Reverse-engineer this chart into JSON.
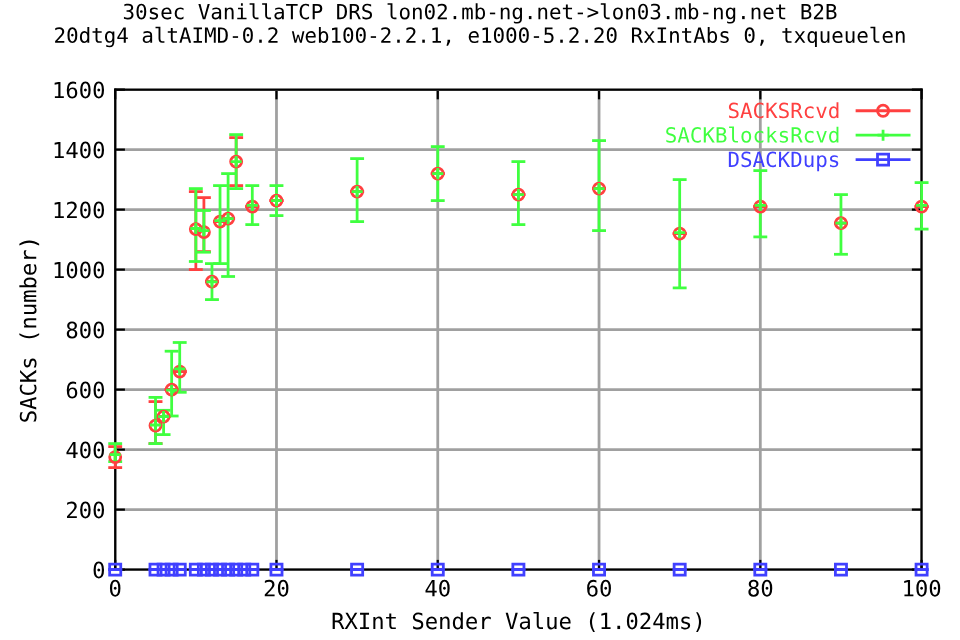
{
  "chart_data": {
    "type": "scatter",
    "title": "30sec VanillaTCP DRS lon02.mb-ng.net->lon03.mb-ng.net B2B\n20dtg4 altAIMD-0.2 web100-2.2.1, e1000-5.2.20 RxIntAbs 0, txqueuelen",
    "xlabel": "RXInt Sender Value (1.024ms)",
    "ylabel": "SACKs (number)",
    "x": [
      0,
      5,
      6,
      7,
      8,
      10,
      11,
      12,
      13,
      14,
      15,
      16,
      17,
      20,
      30,
      40,
      50,
      60,
      70,
      80,
      90,
      100
    ],
    "series": [
      {
        "name": "SACKSRcvd",
        "color": "#ff4040",
        "marker": "circle",
        "values": [
          375,
          480,
          510,
          600,
          660,
          1135,
          1125,
          960,
          1160,
          1170,
          1360,
          null,
          1210,
          1230,
          1260,
          1320,
          1250,
          1270,
          1120,
          1210,
          1155,
          1210
        ],
        "errors": [
          [
            340,
            410
          ],
          [
            420,
            560
          ],
          null,
          null,
          null,
          [
            1000,
            1260
          ],
          [
            1060,
            1240
          ],
          null,
          null,
          null,
          [
            1280,
            1440
          ],
          null,
          null,
          null,
          null,
          null,
          null,
          null,
          null,
          null,
          null,
          null
        ]
      },
      {
        "name": "SACKBlocksRcvd",
        "color": "#40ff40",
        "marker": "cross",
        "values": [
          383,
          482,
          510,
          598,
          669,
          1137,
          1130,
          959,
          1163,
          1170,
          1360,
          null,
          1214,
          1230,
          1260,
          1320,
          1250,
          1270,
          1123,
          1214,
          1155,
          1214
        ],
        "errors": [
          [
            360,
            420
          ],
          [
            420,
            574
          ],
          [
            450,
            531
          ],
          [
            512,
            728
          ],
          [
            591,
            757
          ],
          [
            1027,
            1270
          ],
          [
            1058,
            1197
          ],
          [
            900,
            1020
          ],
          [
            1020,
            1280
          ],
          [
            977,
            1320
          ],
          [
            1270,
            1450
          ],
          null,
          [
            1150,
            1280
          ],
          [
            1180,
            1280
          ],
          [
            1160,
            1370
          ],
          [
            1230,
            1410
          ],
          [
            1150,
            1360
          ],
          [
            1130,
            1430
          ],
          [
            939,
            1300
          ],
          [
            1109,
            1330
          ],
          [
            1051,
            1250
          ],
          [
            1135,
            1290
          ]
        ]
      },
      {
        "name": "DSACKDups",
        "color": "#4040ff",
        "marker": "square",
        "values": [
          0,
          0,
          0,
          0,
          0,
          0,
          0,
          0,
          0,
          0,
          0,
          0,
          0,
          0,
          0,
          0,
          0,
          0,
          0,
          0,
          0,
          0
        ],
        "errors": [
          0,
          0,
          0,
          0,
          0,
          0,
          0,
          0,
          0,
          0,
          0,
          0,
          0,
          0,
          0,
          0,
          0,
          0,
          0,
          0,
          0,
          0
        ]
      }
    ],
    "xlim": [
      0,
      100
    ],
    "xticks": [
      0,
      20,
      40,
      60,
      80,
      100
    ],
    "ylim": [
      0,
      1600
    ],
    "yticks": [
      0,
      200,
      400,
      600,
      800,
      1000,
      1200,
      1400,
      1600
    ],
    "grid": true,
    "legend": "top right"
  }
}
